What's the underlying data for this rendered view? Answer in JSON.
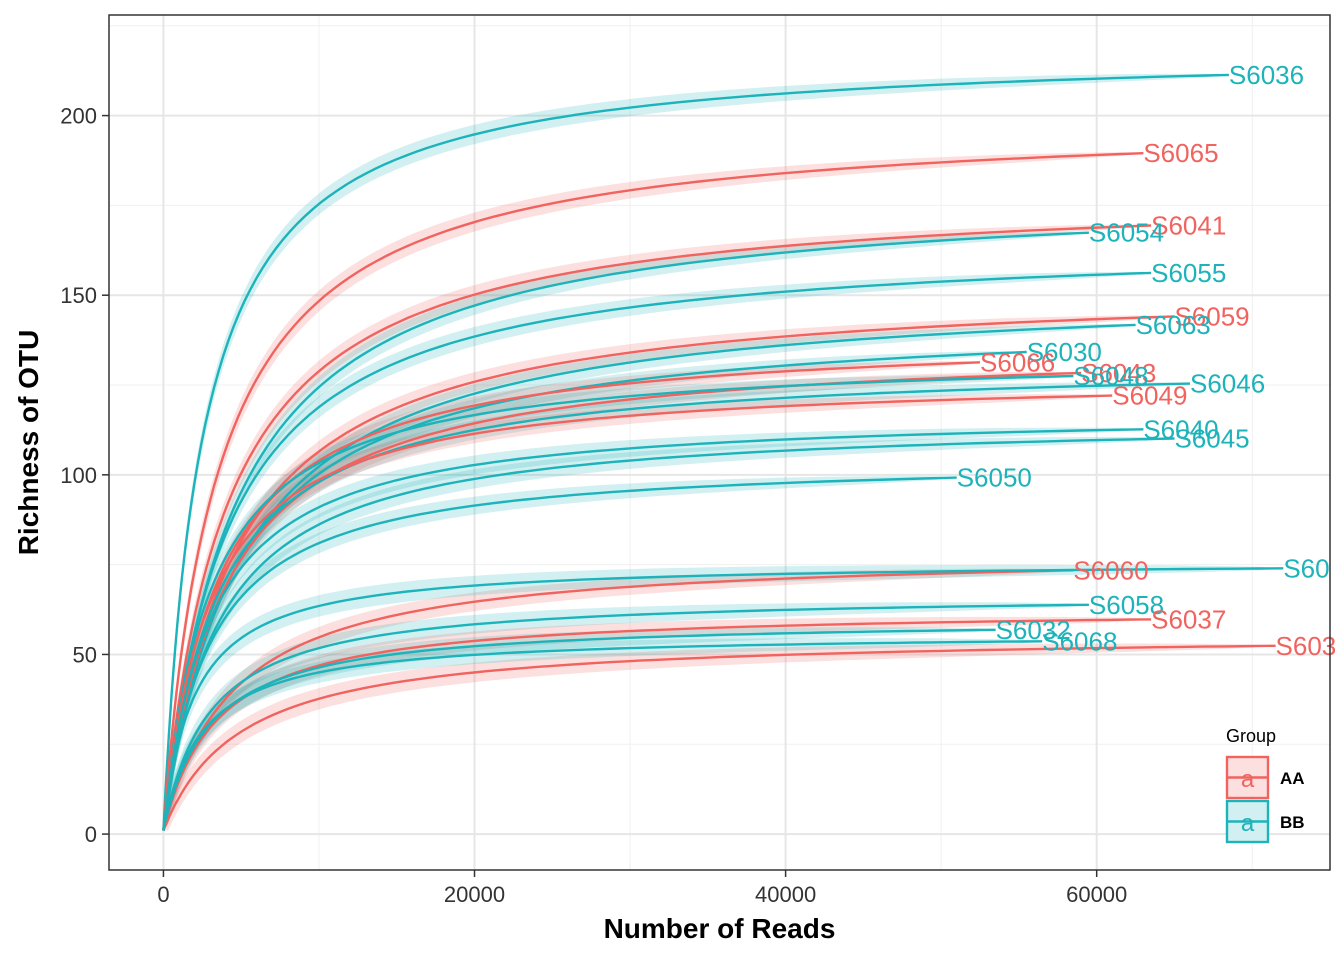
{
  "chart_data": {
    "type": "line",
    "xlabel": "Number of Reads",
    "ylabel": "Richness of OTU",
    "xlim": [
      -3500,
      75000
    ],
    "ylim": [
      -10,
      228
    ],
    "xticks": [
      0,
      20000,
      40000,
      60000
    ],
    "yticks": [
      0,
      50,
      100,
      150,
      200
    ],
    "grid": true,
    "legend": {
      "title": "Group",
      "position": "bottom-right",
      "entries": [
        {
          "group": "AA",
          "label": "AA",
          "glyph": "a",
          "color": "#F0635F"
        },
        {
          "group": "BB",
          "label": "BB",
          "glyph": "a",
          "color": "#1CB3BA"
        }
      ]
    },
    "colors": {
      "AA": "#F0635F",
      "BB": "#1CB3BA"
    },
    "series": [
      {
        "name": "S6036",
        "group": "BB",
        "max_reads": 68500,
        "richness": 219,
        "k": 2500
      },
      {
        "name": "S6065",
        "group": "AA",
        "max_reads": 63000,
        "richness": 200,
        "k": 3500
      },
      {
        "name": "S6041",
        "group": "AA",
        "max_reads": 63500,
        "richness": 180,
        "k": 4000
      },
      {
        "name": "S6054",
        "group": "BB",
        "max_reads": 59500,
        "richness": 180,
        "k": 4500
      },
      {
        "name": "S6055",
        "group": "BB",
        "max_reads": 63500,
        "richness": 166,
        "k": 4000
      },
      {
        "name": "S6059",
        "group": "AA",
        "max_reads": 65000,
        "richness": 154,
        "k": 4500
      },
      {
        "name": "S6063",
        "group": "BB",
        "max_reads": 62500,
        "richness": 153,
        "k": 5000
      },
      {
        "name": "S6030",
        "group": "BB",
        "max_reads": 55500,
        "richness": 145,
        "k": 4500
      },
      {
        "name": "S6066",
        "group": "AA",
        "max_reads": 52500,
        "richness": 140,
        "k": 3500
      },
      {
        "name": "S6043",
        "group": "AA",
        "max_reads": 59000,
        "richness": 137,
        "k": 4000
      },
      {
        "name": "S6048",
        "group": "BB",
        "max_reads": 58500,
        "richness": 134,
        "k": 3000
      },
      {
        "name": "S6046",
        "group": "BB",
        "max_reads": 66000,
        "richness": 132,
        "k": 3500
      },
      {
        "name": "S6049",
        "group": "AA",
        "max_reads": 61000,
        "richness": 128,
        "k": 3000
      },
      {
        "name": "S6040",
        "group": "BB",
        "max_reads": 63000,
        "richness": 118,
        "k": 3000
      },
      {
        "name": "S6045",
        "group": "BB",
        "max_reads": 65000,
        "richness": 116,
        "k": 3500
      },
      {
        "name": "S6050",
        "group": "BB",
        "max_reads": 51000,
        "richness": 105,
        "k": 3000
      },
      {
        "name": "S6060",
        "group": "AA",
        "max_reads": 58500,
        "richness": 79,
        "k": 4500
      },
      {
        "name": "S60",
        "group": "BB",
        "max_reads": 72000,
        "richness": 76,
        "k": 2000
      },
      {
        "name": "S6058",
        "group": "BB",
        "max_reads": 59500,
        "richness": 67,
        "k": 3000
      },
      {
        "name": "S6037",
        "group": "AA",
        "max_reads": 63500,
        "richness": 63,
        "k": 3500
      },
      {
        "name": "S6032",
        "group": "BB",
        "max_reads": 53500,
        "richness": 60,
        "k": 3000
      },
      {
        "name": "S603",
        "group": "AA",
        "max_reads": 71500,
        "richness": 56,
        "k": 5000
      },
      {
        "name": "S6068",
        "group": "BB",
        "max_reads": 56500,
        "richness": 56,
        "k": 2500
      }
    ]
  }
}
